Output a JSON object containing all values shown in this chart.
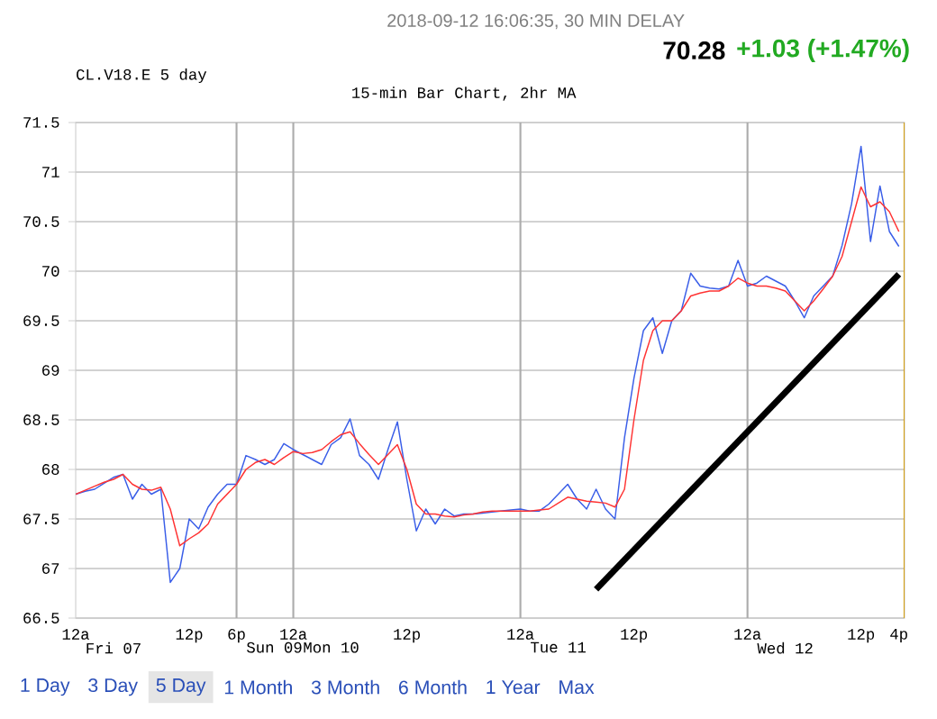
{
  "chart_data": {
    "type": "line",
    "title": "15-min Bar Chart, 2hr MA",
    "annotations": [
      "2018-09-12 16:06:35, 30 MIN DELAY",
      "70.28",
      "+1.03 (+1.47%)",
      "CL.V18.E 5 day",
      "1 Day",
      "3 Day",
      "5 Day",
      "1 Month",
      "3 Month",
      "6 Month",
      "1 Year",
      "Max"
    ],
    "categories": [
      "12a",
      null,
      null,
      null,
      "Fri 07",
      null,
      null,
      null,
      null,
      null,
      null,
      null,
      "12p",
      null,
      null,
      null,
      null,
      "6p",
      null,
      null,
      null,
      "Sun 09",
      null,
      "12a",
      null,
      null,
      null,
      "Mon 10",
      null,
      null,
      null,
      null,
      null,
      null,
      null,
      "12p",
      null,
      null,
      null,
      null,
      null,
      null,
      null,
      null,
      null,
      null,
      null,
      "12a",
      null,
      null,
      null,
      "Tue 11",
      null,
      null,
      null,
      null,
      null,
      null,
      null,
      "12p",
      null,
      null,
      null,
      null,
      null,
      null,
      null,
      null,
      null,
      null,
      null,
      "12a",
      null,
      null,
      null,
      "Wed 12",
      null,
      null,
      null,
      null,
      null,
      null,
      null,
      "12p",
      null,
      null,
      null,
      "4p"
    ],
    "ylim": [
      66.5,
      71.5
    ],
    "yticks": [
      66.5,
      67,
      67.5,
      68,
      68.5,
      69,
      69.5,
      70,
      70.5,
      71,
      71.5
    ],
    "grid": "y",
    "series": [
      {
        "color": "#3a5ee8",
        "values": [
          67.75,
          67.78,
          67.8,
          67.86,
          67.92,
          67.95,
          67.7,
          67.85,
          67.75,
          67.8,
          66.86,
          67.0,
          67.5,
          67.4,
          67.62,
          67.75,
          67.85,
          67.85,
          68.14,
          68.1,
          68.05,
          68.1,
          68.26,
          68.2,
          68.15,
          68.1,
          68.05,
          68.25,
          68.32,
          68.51,
          68.14,
          68.05,
          67.9,
          68.2,
          68.48,
          67.9,
          67.38,
          67.6,
          67.45,
          67.6,
          67.53,
          67.55,
          67.55,
          67.56,
          67.57,
          67.58,
          67.59,
          67.6,
          67.58,
          67.58,
          67.65,
          67.75,
          67.85,
          67.7,
          67.6,
          67.8,
          67.6,
          67.5,
          68.32,
          68.92,
          69.4,
          69.53,
          69.17,
          69.5,
          69.6,
          69.98,
          69.85,
          69.83,
          69.82,
          69.85,
          70.11,
          69.85,
          69.88,
          69.95,
          69.9,
          69.85,
          69.7,
          69.53,
          69.75,
          69.85,
          69.95,
          70.26,
          70.68,
          71.26,
          70.3,
          70.86,
          70.4,
          70.25
        ]
      },
      {
        "color": "#ff3333",
        "values": [
          67.75,
          67.79,
          67.83,
          67.87,
          67.9,
          67.95,
          67.85,
          67.8,
          67.79,
          67.82,
          67.6,
          67.23,
          67.3,
          67.36,
          67.45,
          67.65,
          67.75,
          67.85,
          68.0,
          68.07,
          68.1,
          68.05,
          68.12,
          68.18,
          68.16,
          68.17,
          68.2,
          68.28,
          68.35,
          68.38,
          68.26,
          68.15,
          68.05,
          68.15,
          68.25,
          68.0,
          67.65,
          67.55,
          67.55,
          67.53,
          67.52,
          67.54,
          67.55,
          67.57,
          67.58,
          67.58,
          67.58,
          67.58,
          67.58,
          67.59,
          67.6,
          67.66,
          67.72,
          67.7,
          67.68,
          67.67,
          67.66,
          67.62,
          67.8,
          68.5,
          69.1,
          69.4,
          69.5,
          69.5,
          69.6,
          69.75,
          69.78,
          69.8,
          69.8,
          69.85,
          69.93,
          69.88,
          69.85,
          69.85,
          69.83,
          69.8,
          69.7,
          69.6,
          69.7,
          69.82,
          69.95,
          70.15,
          70.5,
          70.85,
          70.65,
          70.7,
          70.6,
          70.4
        ]
      },
      {
        "color": "#000000",
        "values": [
          null,
          null,
          null,
          null,
          null,
          null,
          null,
          null,
          null,
          null,
          null,
          null,
          null,
          null,
          null,
          null,
          null,
          null,
          null,
          null,
          null,
          null,
          null,
          null,
          null,
          null,
          null,
          null,
          null,
          null,
          null,
          null,
          null,
          null,
          null,
          null,
          null,
          null,
          null,
          null,
          null,
          null,
          null,
          null,
          null,
          null,
          null,
          null,
          null,
          null,
          null,
          null,
          null,
          null,
          null,
          66.79,
          null,
          null,
          null,
          null,
          null,
          null,
          null,
          null,
          null,
          null,
          null,
          null,
          null,
          null,
          null,
          null,
          null,
          null,
          null,
          null,
          null,
          null,
          null,
          null,
          null,
          null,
          null,
          null,
          null,
          null,
          null,
          69.97
        ]
      }
    ]
  }
}
